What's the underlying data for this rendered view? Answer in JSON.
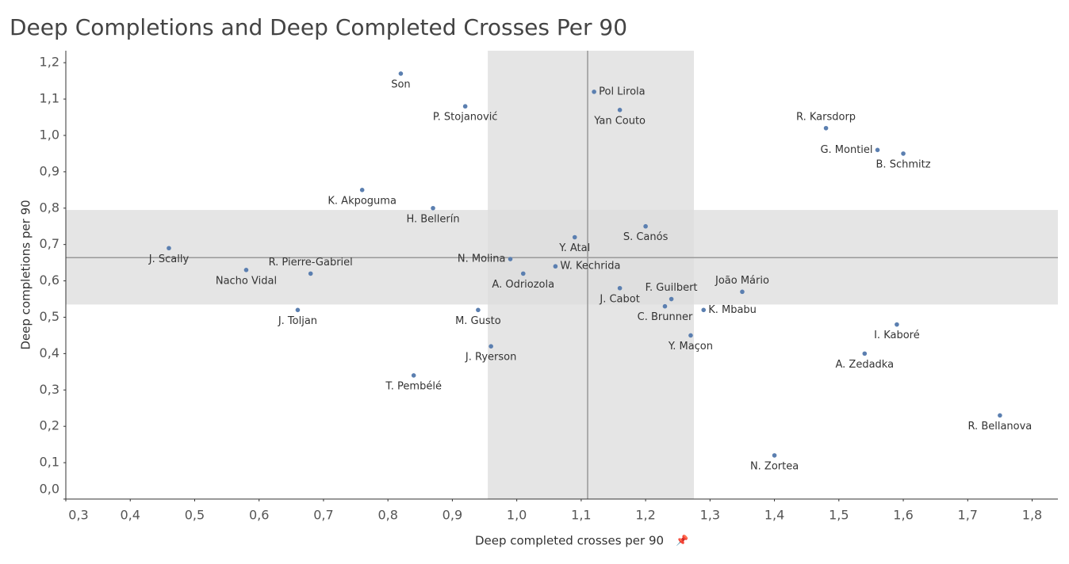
{
  "chart_data": {
    "type": "scatter",
    "title": "Deep Completions and Deep Completed Crosses Per 90",
    "x_label": "Deep completed crosses per 90",
    "y_label": "Deep completions per 90",
    "color": "#5b7fb0",
    "xlim": [
      0.3,
      1.84
    ],
    "ylim": [
      0,
      1.233
    ],
    "xticks": [
      {
        "value": 0.3,
        "label": "0,3"
      },
      {
        "value": 0.4,
        "label": "0,4"
      },
      {
        "value": 0.5,
        "label": "0,5"
      },
      {
        "value": 0.6,
        "label": "0,6"
      },
      {
        "value": 0.7,
        "label": "0,7"
      },
      {
        "value": 0.8,
        "label": "0,8"
      },
      {
        "value": 0.9,
        "label": "0,9"
      },
      {
        "value": 1.0,
        "label": "1,0"
      },
      {
        "value": 1.1,
        "label": "1,1"
      },
      {
        "value": 1.2,
        "label": "1,2"
      },
      {
        "value": 1.3,
        "label": "1,3"
      },
      {
        "value": 1.4,
        "label": "1,4"
      },
      {
        "value": 1.5,
        "label": "1,5"
      },
      {
        "value": 1.6,
        "label": "1,6"
      },
      {
        "value": 1.7,
        "label": "1,7"
      },
      {
        "value": 1.8,
        "label": "1,8"
      }
    ],
    "yticks": [
      {
        "value": 0,
        "label": "0,0"
      },
      {
        "value": 0.1,
        "label": "0,1"
      },
      {
        "value": 0.2,
        "label": "0,2"
      },
      {
        "value": 0.3,
        "label": "0,3"
      },
      {
        "value": 0.4,
        "label": "0,4"
      },
      {
        "value": 0.5,
        "label": "0,5"
      },
      {
        "value": 0.6,
        "label": "0,6"
      },
      {
        "value": 0.7,
        "label": "0,7"
      },
      {
        "value": 0.8,
        "label": "0,8"
      },
      {
        "value": 0.9,
        "label": "0,9"
      },
      {
        "value": 1.0,
        "label": "1,0"
      },
      {
        "value": 1.1,
        "label": "1,1"
      },
      {
        "value": 1.2,
        "label": "1,2"
      }
    ],
    "reference_lines": {
      "x": 1.11,
      "y": 0.664
    },
    "bands": {
      "x": [
        0.955,
        1.275
      ],
      "y": [
        0.535,
        0.795
      ]
    },
    "labels": [
      "Son",
      "P. Stojanović",
      "Pol Lirola",
      "Yan Couto",
      "R. Karsdorp",
      "G. Montiel",
      "B. Schmitz",
      "K. Akpoguma",
      "H. Bellerín",
      "S. Canós",
      "Y. Atal",
      "J. Scally",
      "N. Molina",
      "W. Kechrida",
      "Nacho Vidal",
      "R. Pierre-Gabriel",
      "A. Odriozola",
      "J. Cabot",
      "João Mário",
      "F. Guilbert",
      "C. Brunner",
      "K. Mbabu",
      "J. Toljan",
      "M. Gusto",
      "I. Kaboré",
      "Y. Maçon",
      "J. Ryerson",
      "A. Zedadka",
      "T. Pembélé",
      "R. Bellanova",
      "N. Zortea"
    ],
    "x": [
      0.82,
      0.92,
      1.12,
      1.16,
      1.48,
      1.56,
      1.6,
      0.76,
      0.87,
      1.2,
      1.09,
      0.46,
      0.99,
      1.06,
      0.58,
      0.68,
      1.01,
      1.16,
      1.35,
      1.24,
      1.23,
      1.29,
      0.66,
      0.94,
      1.59,
      1.27,
      0.96,
      1.54,
      0.84,
      1.75,
      1.4
    ],
    "values": [
      1.17,
      1.08,
      1.12,
      1.07,
      1.02,
      0.96,
      0.95,
      0.85,
      0.8,
      0.75,
      0.72,
      0.69,
      0.66,
      0.64,
      0.63,
      0.62,
      0.62,
      0.58,
      0.57,
      0.55,
      0.53,
      0.52,
      0.52,
      0.52,
      0.48,
      0.45,
      0.42,
      0.4,
      0.34,
      0.23,
      0.12
    ]
  }
}
